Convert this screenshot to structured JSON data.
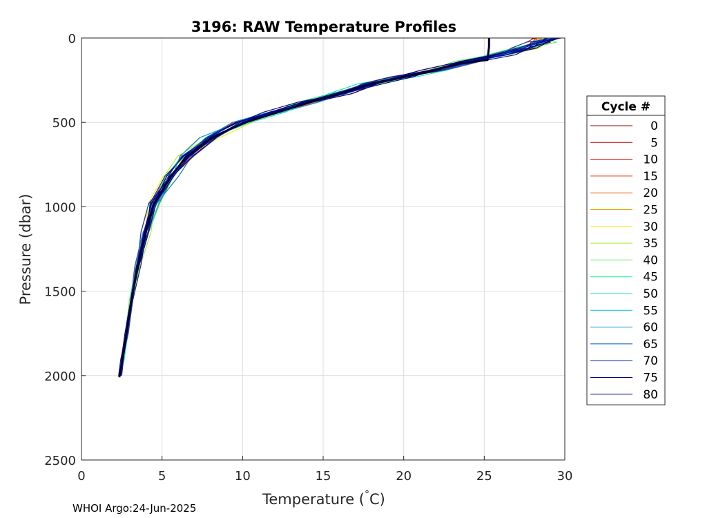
{
  "chart_data": {
    "type": "line",
    "title": "3196: RAW Temperature Profiles",
    "xlabel": "Temperature (",
    "xlabel_unit": "C)",
    "ylabel": "Pressure (dbar)",
    "xlim": [
      0,
      30
    ],
    "ylim": [
      0,
      2500
    ],
    "y_reversed": true,
    "x_ticks": [
      "0",
      "5",
      "10",
      "15",
      "20",
      "25",
      "30"
    ],
    "y_ticks": [
      "0",
      "500",
      "1000",
      "1500",
      "2000",
      "2500"
    ],
    "grid": true,
    "legend_title": "Cycle #",
    "legend_position": "right",
    "legend": [
      {
        "label": "0",
        "color": "#800000"
      },
      {
        "label": "5",
        "color": "#b00000"
      },
      {
        "label": "10",
        "color": "#e00000"
      },
      {
        "label": "15",
        "color": "#f03010"
      },
      {
        "label": "20",
        "color": "#f06000"
      },
      {
        "label": "25",
        "color": "#e8a000"
      },
      {
        "label": "30",
        "color": "#f0f000"
      },
      {
        "label": "35",
        "color": "#a0f020"
      },
      {
        "label": "40",
        "color": "#50f050"
      },
      {
        "label": "45",
        "color": "#20f090"
      },
      {
        "label": "50",
        "color": "#10e0c0"
      },
      {
        "label": "55",
        "color": "#00c0e0"
      },
      {
        "label": "60",
        "color": "#0090d0"
      },
      {
        "label": "65",
        "color": "#0050c0"
      },
      {
        "label": "70",
        "color": "#0020a0"
      },
      {
        "label": "75",
        "color": "#000070"
      },
      {
        "label": "80",
        "color": "#000090"
      }
    ],
    "series": [
      {
        "values": [
          [
            29.3,
            0
          ],
          [
            28.5,
            25
          ],
          [
            27.5,
            60
          ],
          [
            26,
            100
          ],
          [
            24,
            140
          ],
          [
            22,
            190
          ],
          [
            20,
            230
          ],
          [
            18,
            270
          ],
          [
            16,
            330
          ],
          [
            14,
            380
          ],
          [
            12,
            440
          ],
          [
            10,
            500
          ],
          [
            8,
            590
          ],
          [
            6.5,
            700
          ],
          [
            5.5,
            820
          ],
          [
            4.5,
            980
          ],
          [
            4,
            1150
          ],
          [
            3.5,
            1350
          ],
          [
            3.1,
            1550
          ],
          [
            2.8,
            1750
          ],
          [
            2.55,
            1900
          ],
          [
            2.4,
            2000
          ]
        ]
      }
    ],
    "highlight_series": {
      "color": "#000033",
      "values": [
        [
          25.3,
          0
        ],
        [
          25.3,
          50
        ],
        [
          25.2,
          130
        ],
        [
          23.5,
          150
        ],
        [
          22,
          190
        ],
        [
          20,
          230
        ],
        [
          18,
          270
        ],
        [
          16,
          330
        ],
        [
          14,
          385
        ],
        [
          12,
          445
        ],
        [
          10,
          505
        ],
        [
          8,
          595
        ],
        [
          6.5,
          705
        ],
        [
          5.5,
          825
        ],
        [
          4.5,
          985
        ],
        [
          4,
          1150
        ],
        [
          3.5,
          1350
        ],
        [
          3.1,
          1550
        ],
        [
          2.8,
          1750
        ],
        [
          2.55,
          1900
        ],
        [
          2.35,
          2010
        ]
      ]
    },
    "footer": "WHOI Argo:24-Jun-2025"
  }
}
